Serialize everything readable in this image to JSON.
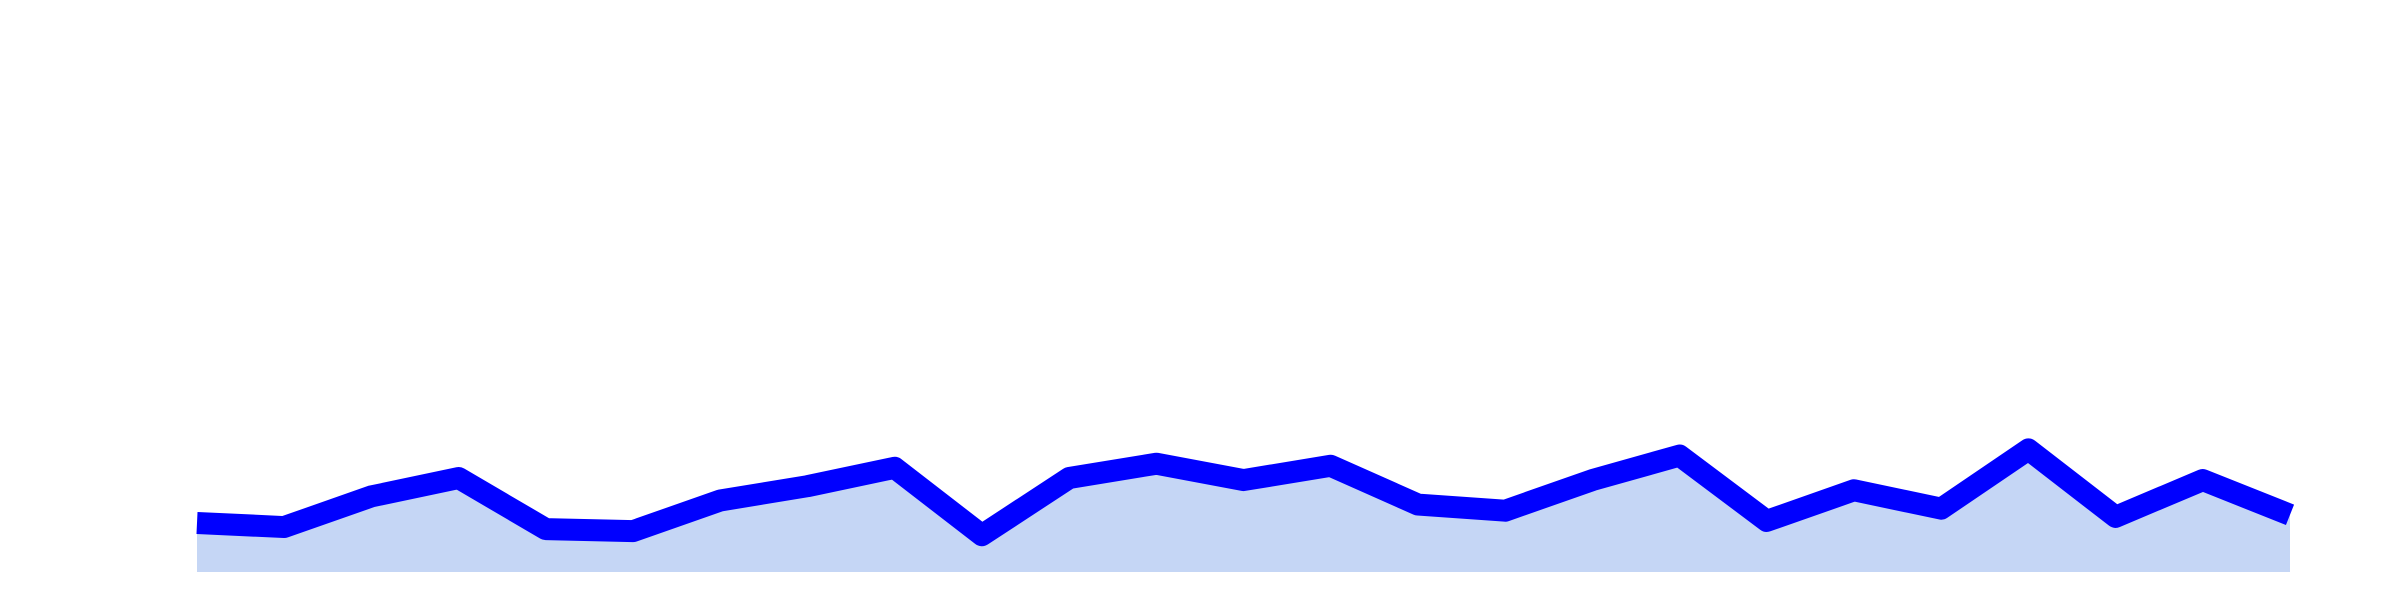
{
  "chart_data": {
    "type": "area",
    "title": "",
    "xlabel": "",
    "ylabel": "",
    "x": [
      1,
      2,
      3,
      4,
      5,
      6,
      7,
      8,
      9,
      10,
      11,
      12,
      13,
      14,
      15,
      16,
      17,
      18,
      19,
      20,
      21,
      22,
      23,
      24,
      25
    ],
    "series": [
      {
        "values": [
          24,
          22,
          37,
          46,
          21,
          20,
          35,
          42,
          51,
          18,
          46,
          53,
          45,
          52,
          33,
          30,
          45,
          57,
          25,
          40,
          31,
          60,
          27,
          45,
          28
        ],
        "line_color": "#0000ff",
        "fill_color": "#c5d6f5"
      }
    ],
    "xlim": [
      1,
      25
    ],
    "ylim": [
      0,
      280
    ],
    "grid": false,
    "axes_visible": false
  }
}
